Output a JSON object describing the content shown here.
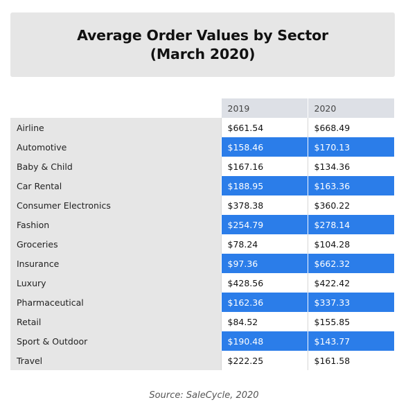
{
  "chart_data": {
    "type": "table",
    "title": [
      "Average Order Values by Sector",
      "(March 2020)"
    ],
    "columns": [
      "",
      "2019",
      "2020"
    ],
    "rows": [
      {
        "sector": "Airline",
        "v2019": "$661.54",
        "v2020": "$668.49"
      },
      {
        "sector": "Automotive",
        "v2019": "$158.46",
        "v2020": "$170.13"
      },
      {
        "sector": "Baby & Child",
        "v2019": "$167.16",
        "v2020": "$134.36"
      },
      {
        "sector": "Car Rental",
        "v2019": "$188.95",
        "v2020": "$163.36"
      },
      {
        "sector": "Consumer Electronics",
        "v2019": "$378.38",
        "v2020": "$360.22"
      },
      {
        "sector": "Fashion",
        "v2019": "$254.79",
        "v2020": "$278.14"
      },
      {
        "sector": "Groceries",
        "v2019": "$78.24",
        "v2020": "$104.28"
      },
      {
        "sector": "Insurance",
        "v2019": "$97.36",
        "v2020": "$662.32"
      },
      {
        "sector": "Luxury",
        "v2019": "$428.56",
        "v2020": "$422.42"
      },
      {
        "sector": "Pharmaceutical",
        "v2019": "$162.36",
        "v2020": "$337.33"
      },
      {
        "sector": "Retail",
        "v2019": "$84.52",
        "v2020": "$155.85"
      },
      {
        "sector": "Sport & Outdoor",
        "v2019": "$190.48",
        "v2020": "$143.77"
      },
      {
        "sector": "Travel",
        "v2019": "$222.25",
        "v2020": "$161.58"
      }
    ],
    "highlight_color": "#2b7de9",
    "source": "Source: SaleCycle, 2020"
  }
}
